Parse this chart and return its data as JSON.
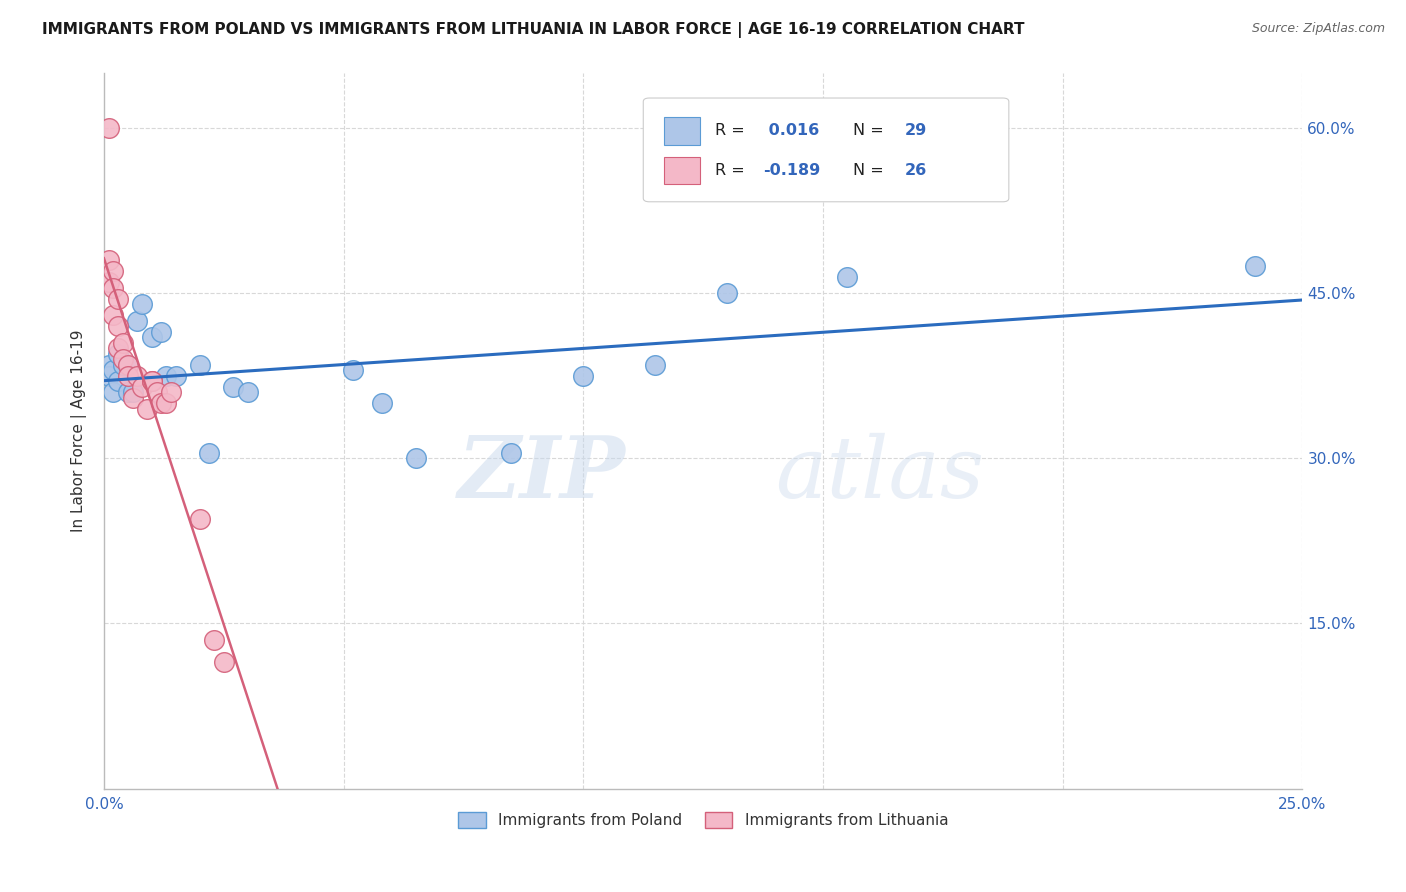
{
  "title": "IMMIGRANTS FROM POLAND VS IMMIGRANTS FROM LITHUANIA IN LABOR FORCE | AGE 16-19 CORRELATION CHART",
  "source": "Source: ZipAtlas.com",
  "ylabel": "In Labor Force | Age 16-19",
  "x_min": 0.0,
  "x_max": 0.25,
  "y_min": 0.0,
  "y_max": 0.65,
  "x_ticks": [
    0.0,
    0.05,
    0.1,
    0.15,
    0.2,
    0.25
  ],
  "x_tick_labels": [
    "0.0%",
    "",
    "",
    "",
    "",
    "25.0%"
  ],
  "y_ticks": [
    0.0,
    0.15,
    0.3,
    0.45,
    0.6
  ],
  "y_tick_labels_left": [
    "",
    "",
    "",
    "",
    ""
  ],
  "y_tick_labels_right": [
    "",
    "15.0%",
    "30.0%",
    "45.0%",
    "60.0%"
  ],
  "poland_color": "#aec6e8",
  "poland_edge_color": "#5b9bd5",
  "lithuania_color": "#f4b8c8",
  "lithuania_edge_color": "#d4607a",
  "trend_poland_color": "#2b6cbf",
  "trend_lithuania_solid_color": "#d4607a",
  "trend_lithuania_dash_color": "#f4b8c8",
  "R_poland": 0.016,
  "N_poland": 29,
  "R_lithuania": -0.189,
  "N_lithuania": 26,
  "poland_x": [
    0.001,
    0.001,
    0.002,
    0.002,
    0.003,
    0.003,
    0.004,
    0.005,
    0.005,
    0.006,
    0.007,
    0.008,
    0.01,
    0.012,
    0.013,
    0.015,
    0.02,
    0.022,
    0.027,
    0.03,
    0.052,
    0.058,
    0.065,
    0.085,
    0.1,
    0.115,
    0.13,
    0.155,
    0.24
  ],
  "poland_y": [
    0.385,
    0.375,
    0.38,
    0.36,
    0.395,
    0.37,
    0.385,
    0.36,
    0.385,
    0.36,
    0.425,
    0.44,
    0.41,
    0.415,
    0.375,
    0.375,
    0.385,
    0.305,
    0.365,
    0.36,
    0.38,
    0.35,
    0.3,
    0.305,
    0.375,
    0.385,
    0.45,
    0.465,
    0.475
  ],
  "lithuania_x": [
    0.001,
    0.001,
    0.001,
    0.002,
    0.002,
    0.002,
    0.003,
    0.003,
    0.003,
    0.004,
    0.004,
    0.005,
    0.005,
    0.006,
    0.007,
    0.008,
    0.009,
    0.01,
    0.01,
    0.011,
    0.012,
    0.013,
    0.014,
    0.02,
    0.023,
    0.025
  ],
  "lithuania_y": [
    0.6,
    0.48,
    0.46,
    0.47,
    0.455,
    0.43,
    0.445,
    0.42,
    0.4,
    0.405,
    0.39,
    0.385,
    0.375,
    0.355,
    0.375,
    0.365,
    0.345,
    0.37,
    0.37,
    0.36,
    0.35,
    0.35,
    0.36,
    0.245,
    0.135,
    0.115
  ],
  "watermark_zip": "ZIP",
  "watermark_atlas": "atlas",
  "background_color": "#ffffff",
  "grid_color": "#d8d8d8",
  "legend_poland_label": "Immigrants from Poland",
  "legend_lithuania_label": "Immigrants from Lithuania"
}
